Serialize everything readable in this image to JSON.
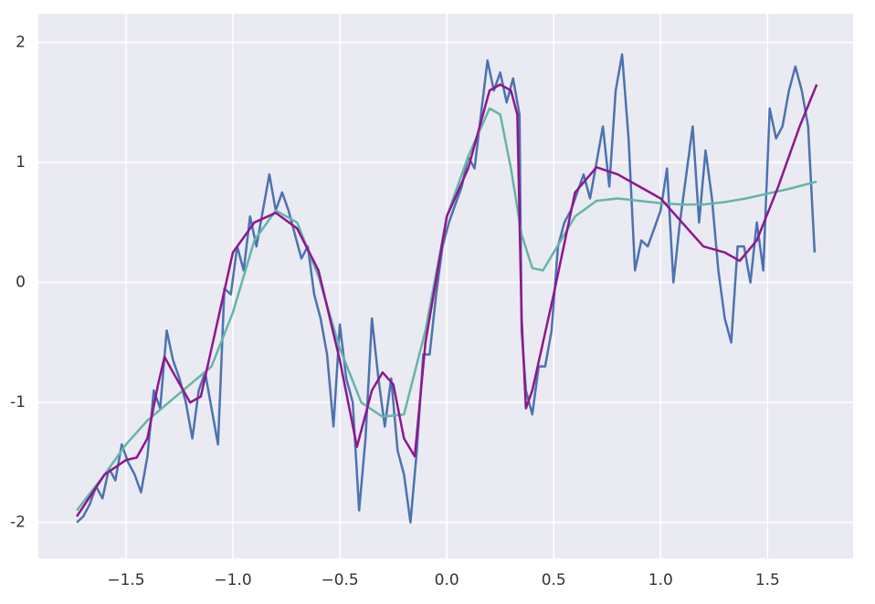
{
  "chart_data": {
    "type": "line",
    "xlim": [
      -1.91,
      1.9
    ],
    "ylim": [
      -2.3,
      2.24
    ],
    "xticks": [
      {
        "value": -1.5,
        "label": "−1.5"
      },
      {
        "value": -1.0,
        "label": "−1.0"
      },
      {
        "value": -0.5,
        "label": "−0.5"
      },
      {
        "value": 0,
        "label": "0.0"
      },
      0.5,
      {
        "value": 1.0,
        "label": "1.0"
      },
      1.5
    ],
    "yticks": [
      -2,
      -1,
      0,
      1,
      2
    ],
    "grid": true,
    "series": [
      {
        "color": "#4c72b0",
        "x": [
          -1.73,
          -1.7,
          -1.67,
          -1.64,
          -1.61,
          -1.58,
          -1.55,
          -1.52,
          -1.49,
          -1.46,
          -1.43,
          -1.4,
          -1.37,
          -1.34,
          -1.31,
          -1.28,
          -1.25,
          -1.22,
          -1.19,
          -1.16,
          -1.13,
          -1.1,
          -1.07,
          -1.04,
          -1.01,
          -0.98,
          -0.95,
          -0.92,
          -0.89,
          -0.86,
          -0.83,
          -0.8,
          -0.77,
          -0.74,
          -0.71,
          -0.68,
          -0.65,
          -0.62,
          -0.59,
          -0.56,
          -0.53,
          -0.5,
          -0.47,
          -0.44,
          -0.41,
          -0.38,
          -0.35,
          -0.32,
          -0.29,
          -0.26,
          -0.23,
          -0.2,
          -0.17,
          -0.14,
          -0.11,
          -0.08,
          -0.05,
          -0.02,
          0.01,
          0.04,
          0.07,
          0.1,
          0.13,
          0.16,
          0.19,
          0.22,
          0.25,
          0.28,
          0.31,
          0.34,
          0.35,
          0.37,
          0.4,
          0.43,
          0.46,
          0.49,
          0.52,
          0.55,
          0.58,
          0.61,
          0.64,
          0.67,
          0.7,
          0.73,
          0.76,
          0.79,
          0.82,
          0.85,
          0.88,
          0.91,
          0.94,
          0.97,
          1.0,
          1.03,
          1.06,
          1.09,
          1.12,
          1.15,
          1.18,
          1.21,
          1.24,
          1.27,
          1.3,
          1.33,
          1.36,
          1.39,
          1.42,
          1.45,
          1.48,
          1.51,
          1.54,
          1.57,
          1.6,
          1.63,
          1.66,
          1.69,
          1.72
        ],
        "values": [
          -2.0,
          -1.95,
          -1.85,
          -1.7,
          -1.8,
          -1.55,
          -1.65,
          -1.35,
          -1.5,
          -1.6,
          -1.75,
          -1.45,
          -0.9,
          -1.05,
          -0.4,
          -0.65,
          -0.8,
          -1.0,
          -1.3,
          -0.9,
          -0.75,
          -1.05,
          -1.35,
          -0.05,
          -0.1,
          0.3,
          0.1,
          0.55,
          0.3,
          0.6,
          0.9,
          0.6,
          0.75,
          0.6,
          0.4,
          0.2,
          0.3,
          -0.1,
          -0.3,
          -0.6,
          -1.2,
          -0.35,
          -0.8,
          -1.0,
          -1.9,
          -1.3,
          -0.3,
          -0.8,
          -1.2,
          -0.8,
          -1.4,
          -1.6,
          -2.0,
          -1.4,
          -0.6,
          -0.6,
          -0.1,
          0.3,
          0.5,
          0.65,
          0.8,
          1.05,
          0.95,
          1.4,
          1.85,
          1.6,
          1.75,
          1.5,
          1.7,
          1.4,
          -0.4,
          -0.9,
          -1.1,
          -0.7,
          -0.7,
          -0.4,
          0.3,
          0.5,
          0.6,
          0.75,
          0.9,
          0.7,
          1.0,
          1.3,
          0.8,
          1.6,
          1.9,
          1.2,
          0.1,
          0.35,
          0.3,
          0.45,
          0.6,
          0.95,
          0.0,
          0.5,
          0.9,
          1.3,
          0.5,
          1.1,
          0.7,
          0.1,
          -0.3,
          -0.5,
          0.3,
          0.3,
          0.0,
          0.5,
          0.1,
          1.45,
          1.2,
          1.3,
          1.6,
          1.8,
          1.6,
          1.3,
          0.25
        ]
      },
      {
        "color": "#64b5a8",
        "x": [
          -1.73,
          -1.6,
          -1.5,
          -1.4,
          -1.3,
          -1.2,
          -1.1,
          -1.0,
          -0.9,
          -0.8,
          -0.7,
          -0.6,
          -0.5,
          -0.4,
          -0.3,
          -0.2,
          -0.1,
          0.0,
          0.1,
          0.2,
          0.25,
          0.3,
          0.35,
          0.4,
          0.45,
          0.5,
          0.6,
          0.7,
          0.8,
          0.9,
          1.0,
          1.1,
          1.2,
          1.3,
          1.4,
          1.5,
          1.6,
          1.73
        ],
        "values": [
          -1.9,
          -1.6,
          -1.35,
          -1.15,
          -1.0,
          -0.85,
          -0.7,
          -0.25,
          0.35,
          0.6,
          0.5,
          0.05,
          -0.55,
          -1.0,
          -1.12,
          -1.1,
          -0.4,
          0.55,
          1.05,
          1.45,
          1.4,
          0.95,
          0.4,
          0.12,
          0.1,
          0.25,
          0.55,
          0.68,
          0.7,
          0.68,
          0.66,
          0.65,
          0.65,
          0.67,
          0.7,
          0.74,
          0.78,
          0.84
        ]
      },
      {
        "color": "#8e168e",
        "x": [
          -1.73,
          -1.6,
          -1.5,
          -1.45,
          -1.4,
          -1.35,
          -1.32,
          -1.28,
          -1.2,
          -1.15,
          -1.1,
          -1.0,
          -0.9,
          -0.8,
          -0.7,
          -0.6,
          -0.5,
          -0.42,
          -0.35,
          -0.3,
          -0.25,
          -0.2,
          -0.15,
          -0.1,
          0.0,
          0.1,
          0.2,
          0.25,
          0.3,
          0.33,
          0.35,
          0.37,
          0.4,
          0.5,
          0.6,
          0.7,
          0.8,
          0.9,
          1.0,
          1.1,
          1.2,
          1.3,
          1.37,
          1.45,
          1.55,
          1.65,
          1.73
        ],
        "values": [
          -1.95,
          -1.6,
          -1.48,
          -1.46,
          -1.3,
          -0.85,
          -0.62,
          -0.75,
          -1.0,
          -0.95,
          -0.55,
          0.25,
          0.5,
          0.58,
          0.45,
          0.1,
          -0.65,
          -1.37,
          -0.9,
          -0.75,
          -0.85,
          -1.3,
          -1.45,
          -0.5,
          0.55,
          0.95,
          1.6,
          1.65,
          1.6,
          1.4,
          -0.3,
          -1.05,
          -0.9,
          -0.1,
          0.75,
          0.96,
          0.9,
          0.8,
          0.7,
          0.5,
          0.3,
          0.25,
          0.18,
          0.35,
          0.8,
          1.3,
          1.65
        ]
      }
    ]
  }
}
